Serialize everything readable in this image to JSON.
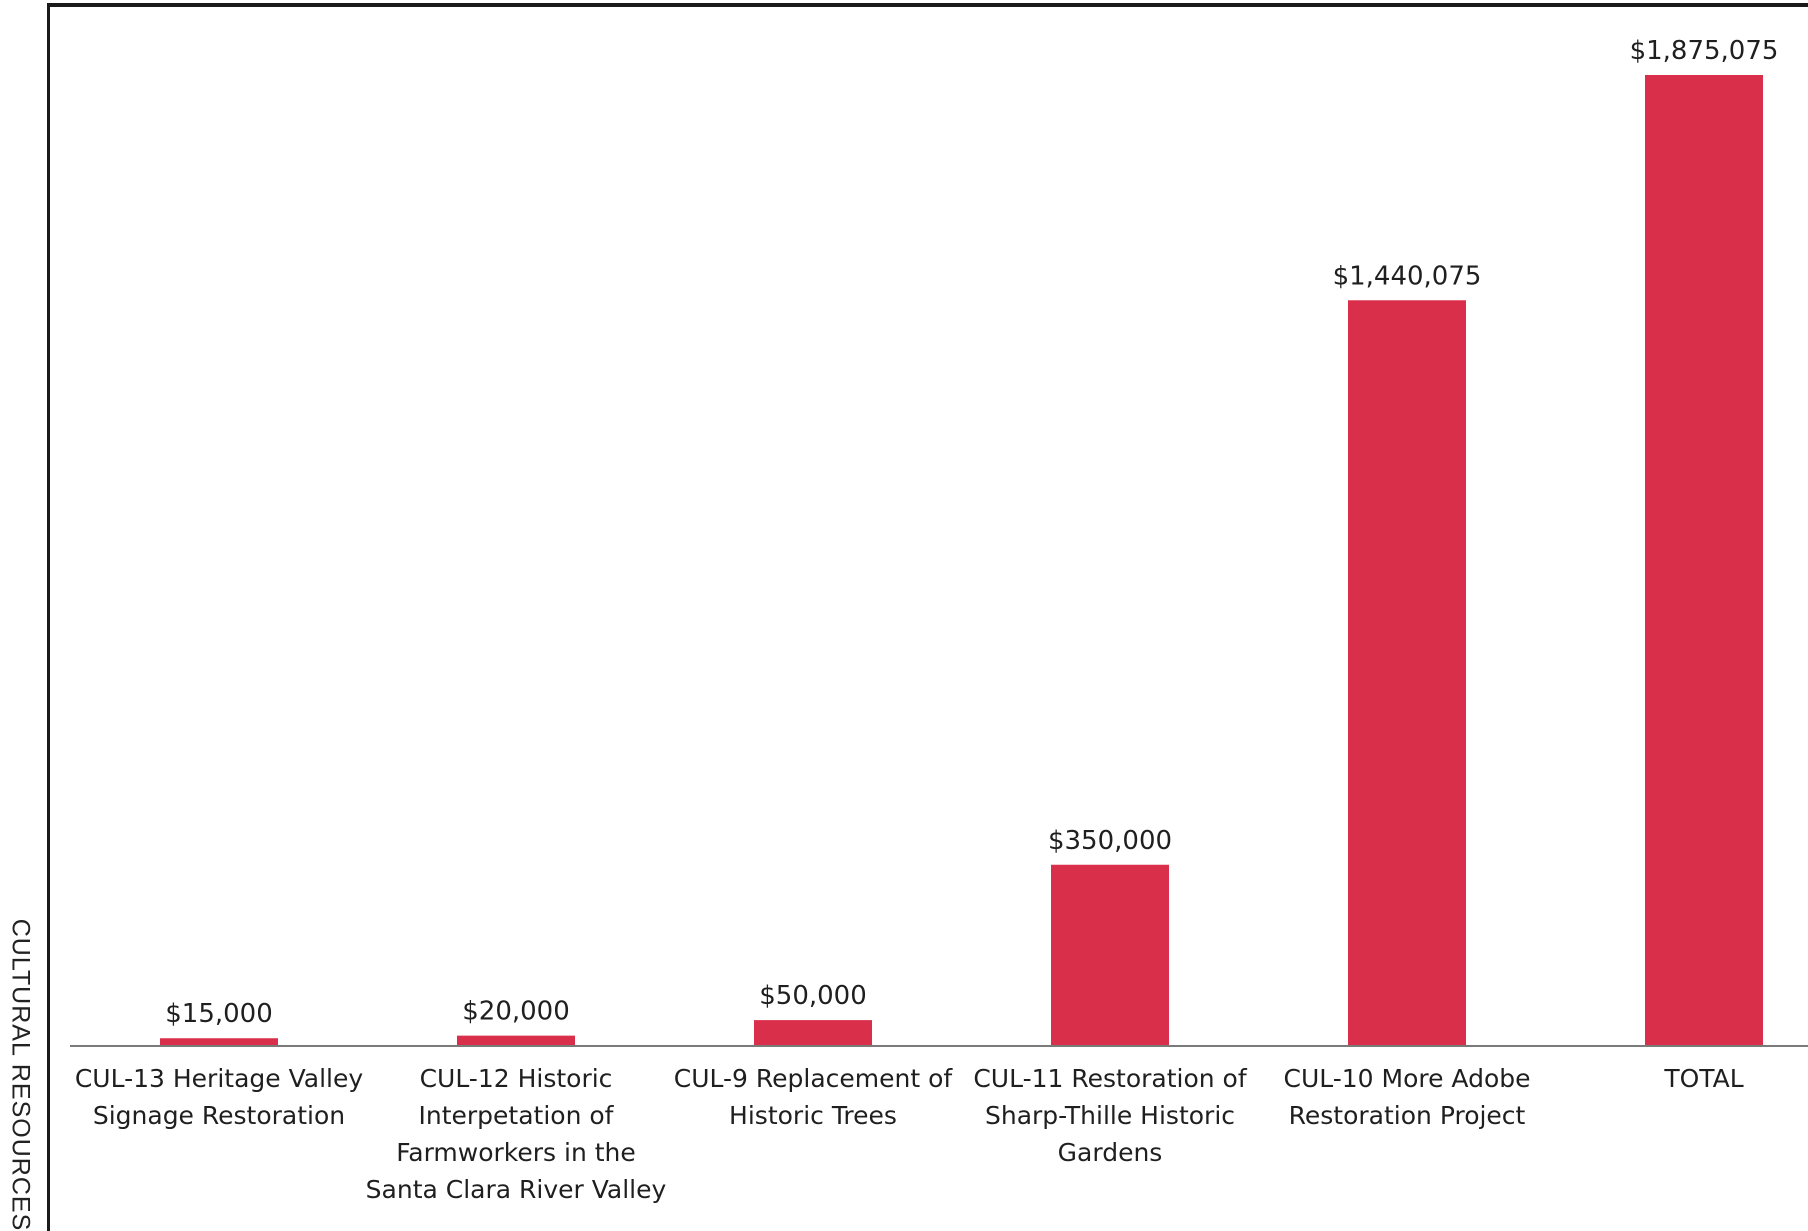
{
  "side_label": "CULTURAL RESOURCES",
  "chart_data": {
    "type": "bar",
    "title": "",
    "xlabel": "",
    "ylabel": "",
    "ylim": [
      0,
      1875075
    ],
    "categories": [
      [
        "CUL-13 Heritage Valley",
        "Signage Restoration"
      ],
      [
        "CUL-12 Historic",
        "Interpetation of",
        "Farmworkers in the",
        "Santa Clara River Valley"
      ],
      [
        "CUL-9 Replacement of",
        "Historic Trees"
      ],
      [
        "CUL-11 Restoration of",
        "Sharp-Thille Historic",
        "Gardens"
      ],
      [
        "CUL-10 More Adobe",
        "Restoration Project"
      ],
      [
        "TOTAL"
      ]
    ],
    "values": [
      15000,
      20000,
      50000,
      350000,
      1440075,
      1875075
    ],
    "value_labels": [
      "$15,000",
      "$20,000",
      "$50,000",
      "$350,000",
      "$1,440,075",
      "$1,875,075"
    ],
    "bar_color": "#d92f4b",
    "grid": false,
    "legend": "none"
  }
}
